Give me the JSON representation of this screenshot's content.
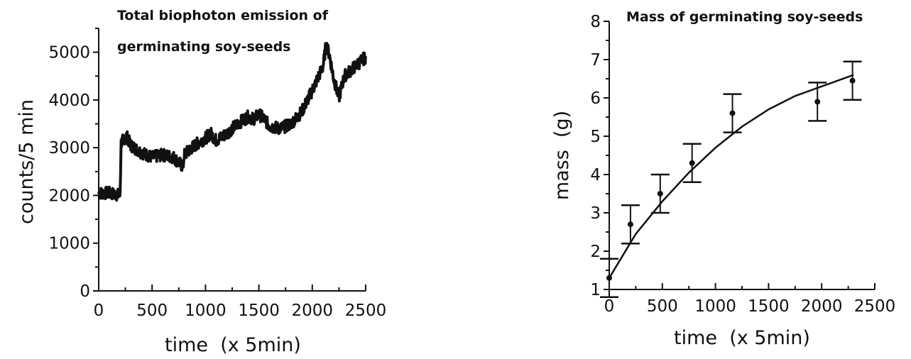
{
  "chart_data": [
    {
      "type": "line",
      "title_lines": [
        "Total biophoton emission of",
        "germinating soy-seeds"
      ],
      "xlabel": "time  (x 5min)",
      "ylabel": "counts/5 min",
      "xlim": [
        0,
        2500
      ],
      "ylim": [
        0,
        5500
      ],
      "xticks": [
        "0",
        "500",
        "1000",
        "1500",
        "2000",
        "2500"
      ],
      "yticks": [
        "0",
        "1000",
        "2000",
        "3000",
        "4000",
        "5000"
      ],
      "grid": false,
      "series": [
        {
          "x": [
            0,
            100,
            200,
            210,
            260,
            300,
            400,
            500,
            600,
            700,
            790,
            800,
            900,
            1000,
            1050,
            1100,
            1200,
            1300,
            1400,
            1450,
            1500,
            1550,
            1600,
            1700,
            1800,
            1900,
            2000,
            2050,
            2100,
            2130,
            2160,
            2200,
            2250,
            2300,
            2350,
            2400,
            2450,
            2500
          ],
          "y": [
            2050,
            2050,
            2000,
            3100,
            3250,
            3050,
            2900,
            2800,
            2850,
            2800,
            2600,
            2850,
            3050,
            3200,
            3300,
            3150,
            3300,
            3500,
            3650,
            3600,
            3700,
            3600,
            3450,
            3400,
            3500,
            3750,
            4200,
            4450,
            4700,
            5150,
            4950,
            4450,
            4050,
            4500,
            4600,
            4700,
            4800,
            4900
          ]
        }
      ]
    },
    {
      "type": "scatter",
      "title": "Mass of germinating soy-seeds",
      "xlabel": "time  (x 5min)",
      "ylabel": "mass  (g)",
      "xlim": [
        0,
        2500
      ],
      "ylim": [
        1,
        8
      ],
      "xticks": [
        "0",
        "500",
        "1000",
        "1500",
        "2000",
        "2500"
      ],
      "yticks": [
        "1",
        "2",
        "3",
        "4",
        "5",
        "6",
        "7",
        "8"
      ],
      "grid": false,
      "series": [
        {
          "x": [
            0,
            200,
            480,
            780,
            1160,
            1960,
            2290
          ],
          "y": [
            1.3,
            2.7,
            3.5,
            4.3,
            5.6,
            5.9,
            6.45
          ],
          "error": [
            0.5,
            0.5,
            0.5,
            0.5,
            0.5,
            0.5,
            0.5
          ]
        }
      ],
      "fit_curve": {
        "x": [
          0,
          250,
          500,
          750,
          1000,
          1250,
          1500,
          1750,
          2000,
          2300
        ],
        "y": [
          1.3,
          2.45,
          3.3,
          4.05,
          4.7,
          5.25,
          5.7,
          6.05,
          6.3,
          6.6
        ]
      }
    }
  ]
}
